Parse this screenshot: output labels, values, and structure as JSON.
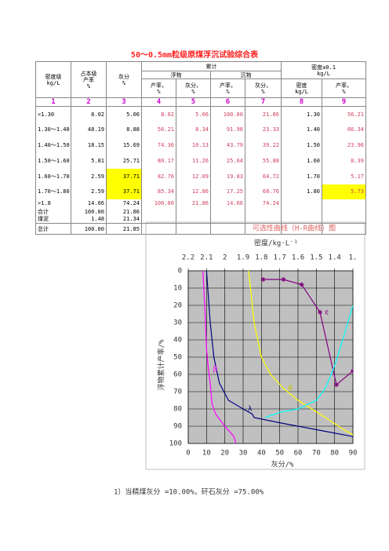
{
  "title": "50～0.5mm粒级原煤浮沉试验综合表",
  "table": {
    "header": {
      "density_class": [
        "密度级",
        "kg/L"
      ],
      "yield": [
        "占本级",
        "产率",
        "%"
      ],
      "ash": [
        "灰分",
        "%"
      ],
      "cumulative": "累计",
      "floats": "浮物",
      "sinks": "沉物",
      "plus_minus": [
        "密度±0.1",
        "kg/L"
      ],
      "sub": [
        [
          "产率，",
          "%"
        ],
        [
          "灰分，",
          "%"
        ],
        [
          "产率，",
          "%"
        ],
        [
          "灰分，",
          "%"
        ],
        [
          "密度",
          "kg/L"
        ],
        [
          "产率，",
          "%"
        ]
      ]
    },
    "column_numbers": [
      "1",
      "2",
      "3",
      "4",
      "5",
      "6",
      "7",
      "8",
      "9"
    ],
    "rows": [
      [
        "<1.30",
        "8.02",
        "5.06",
        "8.02",
        "5.06",
        "100.00",
        "21.86",
        "1.30",
        "56.21"
      ],
      [
        "1.30～1.40",
        "48.19",
        "8.88",
        "56.21",
        "8.34",
        "91.98",
        "23.33",
        "1.40",
        "66.34"
      ],
      [
        "1.40～1.50",
        "18.15",
        "15.69",
        "74.36",
        "10.13",
        "43.79",
        "39.22",
        "1.50",
        "23.96"
      ],
      [
        "1.50～1.60",
        "5.81",
        "25.71",
        "80.17",
        "11.26",
        "25.64",
        "55.88",
        "1.60",
        "8.39"
      ],
      [
        "1.60～1.70",
        "2.59",
        "37.71",
        "82.76",
        "12.09",
        "19.83",
        "64.72",
        "1.70",
        "5.17"
      ],
      [
        "1.70～1.80",
        "2.59",
        "37.71",
        "85.34",
        "12.86",
        "17.25",
        "68.76",
        "1.80",
        "5.73"
      ],
      [
        ">1.8",
        "14.66",
        "74.24",
        "100.00",
        "21.86",
        "14.66",
        "74.24"
      ],
      [
        "合计",
        "100.00",
        "21.86"
      ],
      [
        "煤泥",
        "1.48",
        "21.34"
      ],
      [
        "总计",
        "100.00",
        "21.85"
      ]
    ]
  },
  "chart_data": {
    "type": "line",
    "title": "可选性曲线（H-R曲线）图",
    "x2label": "密度/kg·L⁻¹",
    "xlabel": "灰分/%",
    "ylabel": "浮物累计产率/%",
    "xlim": [
      0,
      90
    ],
    "xticks": [
      0,
      10,
      20,
      30,
      40,
      50,
      60,
      70,
      80,
      90
    ],
    "ylim": [
      0,
      100
    ],
    "y_inverted": true,
    "yticks": [
      0,
      10,
      20,
      30,
      40,
      50,
      60,
      70,
      80,
      90,
      100
    ],
    "x2lim": [
      2.2,
      1.3
    ],
    "x2ticks": [
      2.2,
      2.1,
      2.0,
      1.9,
      1.8,
      1.7,
      1.6,
      1.5,
      1.4,
      {
        "value": 1.3,
        "label": "1."
      }
    ],
    "grid": true,
    "background": "#c0c0c0",
    "series": [
      {
        "name": "λ",
        "color": "#000080",
        "x": [
          10,
          11,
          12,
          14,
          17,
          22,
          30,
          35,
          36,
          50,
          70,
          90
        ],
        "values": [
          0,
          15,
          30,
          50,
          65,
          75,
          80,
          83,
          85,
          88,
          92,
          96
        ]
      },
      {
        "name": "β",
        "color": "#ff00ff",
        "x": [
          8,
          9,
          10,
          11,
          12,
          13,
          15,
          20,
          25,
          26
        ],
        "values": [
          0,
          20,
          45,
          57,
          65,
          77,
          83,
          90,
          96,
          100
        ]
      },
      {
        "name": "θ",
        "color": "#ffff00",
        "x": [
          33,
          36,
          40,
          45,
          52,
          60,
          75,
          85,
          90
        ],
        "values": [
          0,
          30,
          50,
          60,
          68,
          75,
          85,
          92,
          95
        ]
      },
      {
        "name": "ε",
        "color": "#800080",
        "marker": true,
        "x": [
          41,
          52,
          62,
          72,
          81,
          90
        ],
        "values": [
          5,
          5,
          8,
          24,
          66,
          58
        ]
      },
      {
        "color": "#00ffff",
        "x": [
          42,
          50,
          60,
          70,
          75,
          80,
          85,
          90
        ],
        "values": [
          85,
          82,
          80,
          75,
          68,
          55,
          38,
          20
        ]
      }
    ],
    "note": "1）当精煤灰分 =10.00%，矸石灰分 =75.00%"
  }
}
